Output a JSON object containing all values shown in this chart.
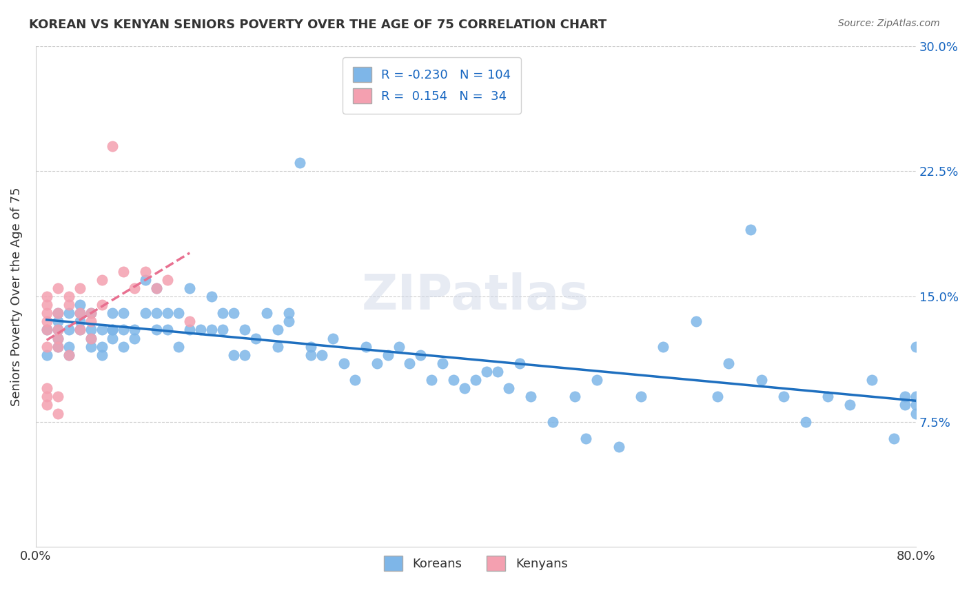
{
  "title": "KOREAN VS KENYAN SENIORS POVERTY OVER THE AGE OF 75 CORRELATION CHART",
  "source": "Source: ZipAtlas.com",
  "ylabel": "Seniors Poverty Over the Age of 75",
  "xlabel_koreans": "Koreans",
  "xlabel_kenyans": "Kenyans",
  "xlim": [
    0.0,
    0.8
  ],
  "ylim": [
    0.0,
    0.3
  ],
  "xticks": [
    0.0,
    0.1,
    0.2,
    0.3,
    0.4,
    0.5,
    0.6,
    0.7,
    0.8
  ],
  "xtick_labels": [
    "0.0%",
    "",
    "",
    "",
    "",
    "",
    "",
    "",
    "80.0%"
  ],
  "ytick_labels_right": [
    "7.5%",
    "15.0%",
    "22.5%",
    "30.0%"
  ],
  "yticks_right": [
    0.075,
    0.15,
    0.225,
    0.3
  ],
  "korean_R": -0.23,
  "korean_N": 104,
  "kenyan_R": 0.154,
  "kenyan_N": 34,
  "korean_color": "#7EB6E8",
  "kenyan_color": "#F4A0B0",
  "korean_line_color": "#1E6FBF",
  "kenyan_line_color": "#E87090",
  "legend_R_color": "#1565C0",
  "background_color": "#FFFFFF",
  "grid_color": "#CCCCCC",
  "watermark_text": "ZIPatlas",
  "watermark_color": "#D0D8E8",
  "koreans_x": [
    0.01,
    0.01,
    0.02,
    0.02,
    0.02,
    0.02,
    0.02,
    0.03,
    0.03,
    0.03,
    0.03,
    0.04,
    0.04,
    0.04,
    0.04,
    0.05,
    0.05,
    0.05,
    0.05,
    0.06,
    0.06,
    0.06,
    0.07,
    0.07,
    0.07,
    0.07,
    0.08,
    0.08,
    0.08,
    0.09,
    0.09,
    0.1,
    0.1,
    0.11,
    0.11,
    0.11,
    0.12,
    0.12,
    0.13,
    0.13,
    0.14,
    0.14,
    0.15,
    0.16,
    0.16,
    0.17,
    0.17,
    0.18,
    0.18,
    0.19,
    0.19,
    0.2,
    0.21,
    0.22,
    0.22,
    0.23,
    0.23,
    0.24,
    0.25,
    0.25,
    0.26,
    0.27,
    0.28,
    0.29,
    0.3,
    0.31,
    0.32,
    0.33,
    0.34,
    0.35,
    0.36,
    0.37,
    0.38,
    0.39,
    0.4,
    0.41,
    0.42,
    0.43,
    0.44,
    0.45,
    0.47,
    0.49,
    0.5,
    0.51,
    0.53,
    0.55,
    0.57,
    0.6,
    0.62,
    0.63,
    0.65,
    0.66,
    0.68,
    0.7,
    0.72,
    0.74,
    0.76,
    0.78,
    0.79,
    0.79,
    0.8,
    0.8,
    0.8,
    0.8
  ],
  "koreans_y": [
    0.115,
    0.13,
    0.135,
    0.125,
    0.12,
    0.13,
    0.14,
    0.12,
    0.115,
    0.13,
    0.14,
    0.145,
    0.135,
    0.13,
    0.14,
    0.12,
    0.125,
    0.13,
    0.14,
    0.12,
    0.115,
    0.13,
    0.13,
    0.125,
    0.13,
    0.14,
    0.13,
    0.12,
    0.14,
    0.13,
    0.125,
    0.14,
    0.16,
    0.14,
    0.13,
    0.155,
    0.14,
    0.13,
    0.14,
    0.12,
    0.13,
    0.155,
    0.13,
    0.15,
    0.13,
    0.14,
    0.13,
    0.14,
    0.115,
    0.13,
    0.115,
    0.125,
    0.14,
    0.13,
    0.12,
    0.135,
    0.14,
    0.23,
    0.12,
    0.115,
    0.115,
    0.125,
    0.11,
    0.1,
    0.12,
    0.11,
    0.115,
    0.12,
    0.11,
    0.115,
    0.1,
    0.11,
    0.1,
    0.095,
    0.1,
    0.105,
    0.105,
    0.095,
    0.11,
    0.09,
    0.075,
    0.09,
    0.065,
    0.1,
    0.06,
    0.09,
    0.12,
    0.135,
    0.09,
    0.11,
    0.19,
    0.1,
    0.09,
    0.075,
    0.09,
    0.085,
    0.1,
    0.065,
    0.085,
    0.09,
    0.08,
    0.085,
    0.09,
    0.12
  ],
  "kenyans_x": [
    0.01,
    0.01,
    0.01,
    0.01,
    0.01,
    0.01,
    0.01,
    0.01,
    0.01,
    0.02,
    0.02,
    0.02,
    0.02,
    0.02,
    0.02,
    0.02,
    0.03,
    0.03,
    0.03,
    0.04,
    0.04,
    0.04,
    0.05,
    0.05,
    0.05,
    0.06,
    0.06,
    0.07,
    0.08,
    0.09,
    0.1,
    0.11,
    0.12,
    0.14
  ],
  "kenyans_y": [
    0.12,
    0.13,
    0.135,
    0.14,
    0.145,
    0.15,
    0.095,
    0.09,
    0.085,
    0.13,
    0.125,
    0.12,
    0.14,
    0.155,
    0.09,
    0.08,
    0.15,
    0.145,
    0.115,
    0.155,
    0.14,
    0.13,
    0.14,
    0.135,
    0.125,
    0.16,
    0.145,
    0.24,
    0.165,
    0.155,
    0.165,
    0.155,
    0.16,
    0.135
  ]
}
